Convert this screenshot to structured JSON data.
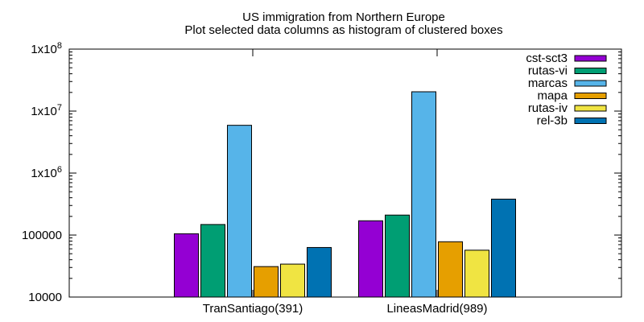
{
  "chart_data": {
    "type": "bar",
    "title": "US immigration from Northern Europe",
    "subtitle": "Plot selected data columns as histogram of clustered boxes",
    "xlabel": "",
    "ylabel": "",
    "yscale": "log",
    "ylim": [
      10000,
      100000000
    ],
    "grid": false,
    "legend_position": "top-right",
    "yticks": [
      {
        "value": 10000,
        "label": "10000"
      },
      {
        "value": 100000,
        "label": "100000"
      },
      {
        "value": 1000000,
        "label": "1x10",
        "exp": "6"
      },
      {
        "value": 10000000,
        "label": "1x10",
        "exp": "7"
      },
      {
        "value": 100000000,
        "label": "1x10",
        "exp": "8"
      }
    ],
    "categories": [
      "TranSantiago(391)",
      "LineasMadrid(989)"
    ],
    "series": [
      {
        "name": "cst-sct3",
        "color": "#9400d3",
        "values": [
          105000,
          170000
        ]
      },
      {
        "name": "rutas-vi",
        "color": "#009e73",
        "values": [
          148000,
          210000
        ]
      },
      {
        "name": "marcas",
        "color": "#56b4e9",
        "values": [
          5900000,
          20500000
        ]
      },
      {
        "name": "mapa",
        "color": "#e69f00",
        "values": [
          31000,
          78000
        ]
      },
      {
        "name": "rutas-iv",
        "color": "#f0e442",
        "values": [
          34000,
          57000
        ]
      },
      {
        "name": "rel-3b",
        "color": "#0072b2",
        "values": [
          63000,
          380000
        ]
      }
    ]
  }
}
